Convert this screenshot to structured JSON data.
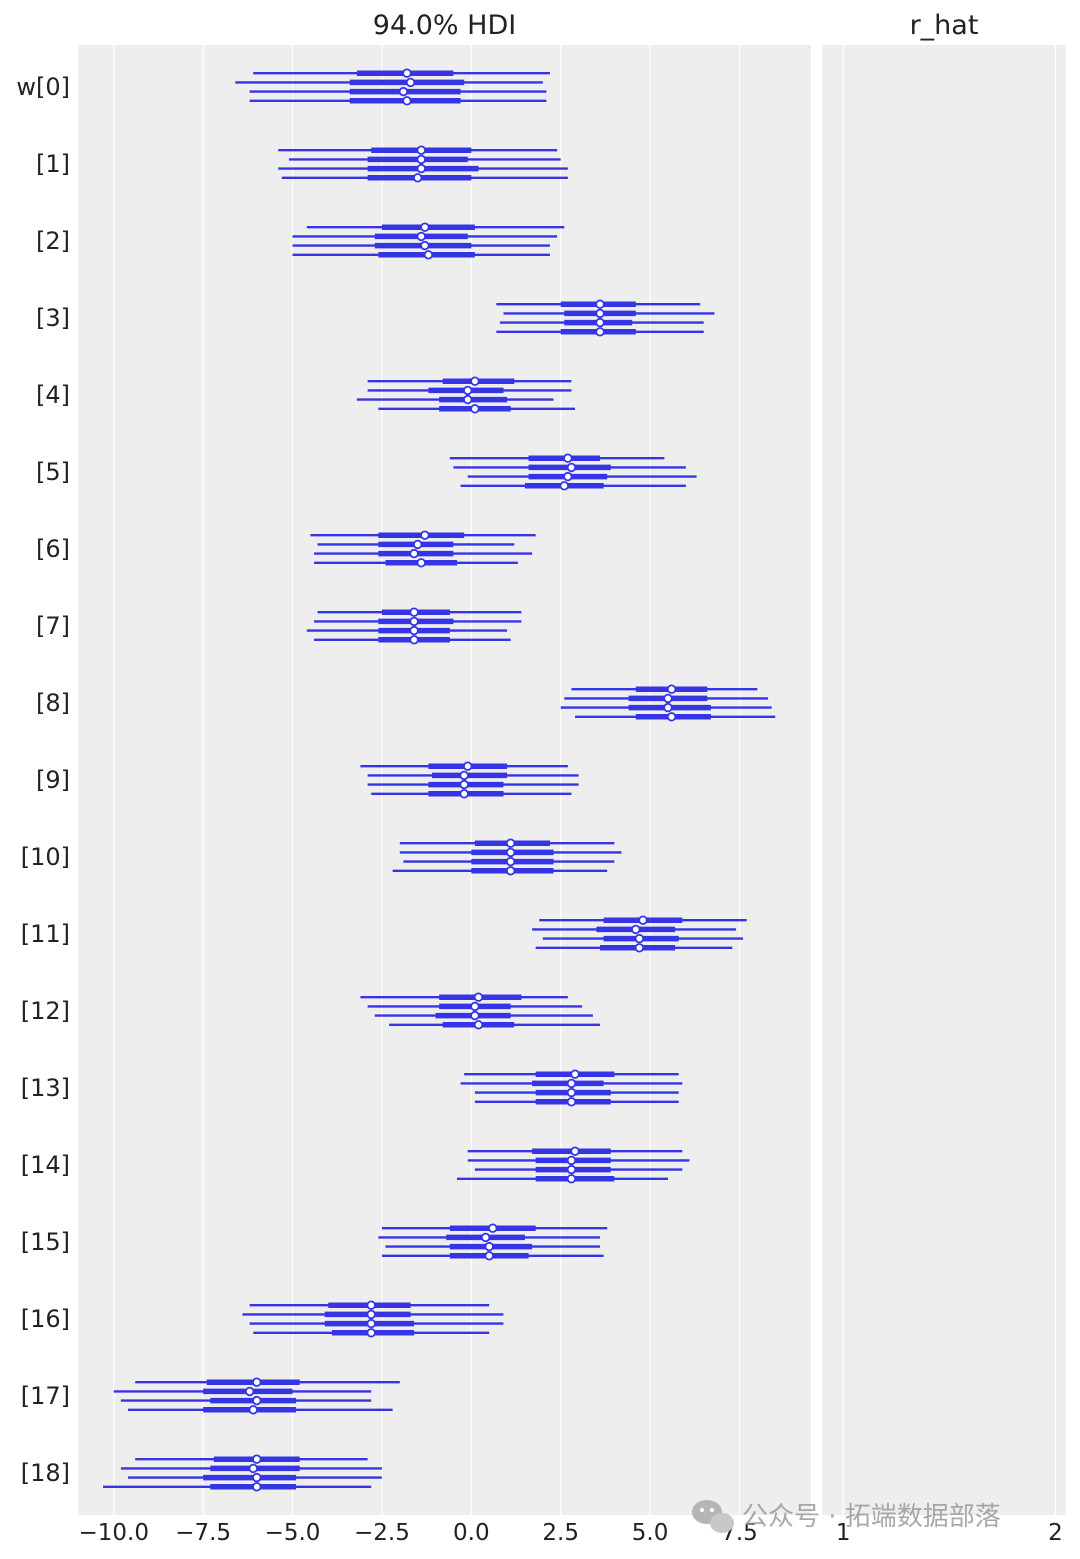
{
  "watermark": "公众号 · 拓端数据部落",
  "chart_data": {
    "type": "forest",
    "panels": [
      {
        "title": "94.0% HDI",
        "xlim": [
          -11.0,
          9.5
        ],
        "xticks": [
          -10.0,
          -7.5,
          -5.0,
          -2.5,
          0.0,
          2.5,
          5.0,
          7.5
        ],
        "xtick_labels": [
          "−10.0",
          "−7.5",
          "−5.0",
          "−2.5",
          "0.0",
          "2.5",
          "5.0",
          "7.5"
        ]
      },
      {
        "title": "r_hat",
        "xlim": [
          0.9,
          2.05
        ],
        "xticks": [
          1,
          2
        ],
        "xtick_labels": [
          "1",
          "2"
        ]
      }
    ],
    "grid": true,
    "chains": 4,
    "row_labels": [
      "w[0]",
      "[1]",
      "[2]",
      "[3]",
      "[4]",
      "[5]",
      "[6]",
      "[7]",
      "[8]",
      "[9]",
      "[10]",
      "[11]",
      "[12]",
      "[13]",
      "[14]",
      "[15]",
      "[16]",
      "[17]",
      "[18]"
    ],
    "rows": [
      {
        "chains": [
          [
            -6.1,
            -3.2,
            -1.8,
            -0.5,
            2.2
          ],
          [
            -6.6,
            -3.4,
            -1.7,
            -0.2,
            2.0
          ],
          [
            -6.2,
            -3.4,
            -1.9,
            -0.3,
            2.1
          ],
          [
            -6.2,
            -3.4,
            -1.8,
            -0.3,
            2.1
          ]
        ]
      },
      {
        "chains": [
          [
            -5.4,
            -2.8,
            -1.4,
            0.0,
            2.4
          ],
          [
            -5.1,
            -2.9,
            -1.4,
            -0.1,
            2.5
          ],
          [
            -5.4,
            -2.9,
            -1.4,
            0.2,
            2.7
          ],
          [
            -5.3,
            -2.9,
            -1.5,
            0.0,
            2.7
          ]
        ]
      },
      {
        "chains": [
          [
            -4.6,
            -2.5,
            -1.3,
            0.1,
            2.6
          ],
          [
            -5.0,
            -2.7,
            -1.4,
            -0.1,
            2.4
          ],
          [
            -5.0,
            -2.7,
            -1.3,
            0.0,
            2.2
          ],
          [
            -5.0,
            -2.6,
            -1.2,
            0.1,
            2.2
          ]
        ]
      },
      {
        "chains": [
          [
            0.7,
            2.5,
            3.6,
            4.6,
            6.4
          ],
          [
            0.9,
            2.6,
            3.6,
            4.6,
            6.8
          ],
          [
            0.8,
            2.6,
            3.6,
            4.5,
            6.5
          ],
          [
            0.7,
            2.5,
            3.6,
            4.6,
            6.5
          ]
        ]
      },
      {
        "chains": [
          [
            -2.9,
            -0.8,
            0.1,
            1.2,
            2.8
          ],
          [
            -2.9,
            -1.2,
            -0.1,
            0.9,
            2.8
          ],
          [
            -3.2,
            -0.9,
            -0.1,
            1.0,
            2.3
          ],
          [
            -2.6,
            -0.9,
            0.1,
            1.1,
            2.9
          ]
        ]
      },
      {
        "chains": [
          [
            -0.6,
            1.6,
            2.7,
            3.6,
            5.4
          ],
          [
            -0.5,
            1.6,
            2.8,
            3.9,
            6.0
          ],
          [
            -0.1,
            1.6,
            2.7,
            3.8,
            6.3
          ],
          [
            -0.3,
            1.5,
            2.6,
            3.7,
            6.0
          ]
        ]
      },
      {
        "chains": [
          [
            -4.5,
            -2.6,
            -1.3,
            -0.2,
            1.8
          ],
          [
            -4.3,
            -2.6,
            -1.5,
            -0.5,
            1.2
          ],
          [
            -4.4,
            -2.6,
            -1.6,
            -0.5,
            1.7
          ],
          [
            -4.4,
            -2.4,
            -1.4,
            -0.4,
            1.3
          ]
        ]
      },
      {
        "chains": [
          [
            -4.3,
            -2.5,
            -1.6,
            -0.6,
            1.4
          ],
          [
            -4.4,
            -2.6,
            -1.6,
            -0.5,
            1.4
          ],
          [
            -4.6,
            -2.6,
            -1.6,
            -0.6,
            1.0
          ],
          [
            -4.4,
            -2.6,
            -1.6,
            -0.6,
            1.1
          ]
        ]
      },
      {
        "chains": [
          [
            2.8,
            4.6,
            5.6,
            6.6,
            8.0
          ],
          [
            2.6,
            4.4,
            5.5,
            6.6,
            8.3
          ],
          [
            2.5,
            4.4,
            5.5,
            6.7,
            8.4
          ],
          [
            2.9,
            4.6,
            5.6,
            6.7,
            8.5
          ]
        ]
      },
      {
        "chains": [
          [
            -3.1,
            -1.2,
            -0.1,
            1.0,
            2.7
          ],
          [
            -2.9,
            -1.1,
            -0.2,
            1.0,
            3.0
          ],
          [
            -2.9,
            -1.2,
            -0.2,
            0.9,
            3.0
          ],
          [
            -2.8,
            -1.2,
            -0.2,
            0.9,
            2.8
          ]
        ]
      },
      {
        "chains": [
          [
            -2.0,
            0.1,
            1.1,
            2.2,
            4.0
          ],
          [
            -2.0,
            0.0,
            1.1,
            2.3,
            4.2
          ],
          [
            -1.9,
            0.0,
            1.1,
            2.3,
            4.0
          ],
          [
            -2.2,
            0.0,
            1.1,
            2.3,
            3.8
          ]
        ]
      },
      {
        "chains": [
          [
            1.9,
            3.7,
            4.8,
            5.9,
            7.7
          ],
          [
            1.7,
            3.5,
            4.6,
            5.7,
            7.4
          ],
          [
            2.0,
            3.7,
            4.7,
            5.8,
            7.6
          ],
          [
            1.8,
            3.6,
            4.7,
            5.7,
            7.3
          ]
        ]
      },
      {
        "chains": [
          [
            -3.1,
            -0.9,
            0.2,
            1.4,
            2.7
          ],
          [
            -2.9,
            -0.9,
            0.1,
            1.1,
            3.1
          ],
          [
            -2.7,
            -1.0,
            0.1,
            1.1,
            3.4
          ],
          [
            -2.3,
            -0.8,
            0.2,
            1.2,
            3.6
          ]
        ]
      },
      {
        "chains": [
          [
            -0.2,
            1.8,
            2.9,
            4.0,
            5.8
          ],
          [
            -0.3,
            1.7,
            2.8,
            3.7,
            5.9
          ],
          [
            0.1,
            1.8,
            2.8,
            3.9,
            5.8
          ],
          [
            0.1,
            1.8,
            2.8,
            3.9,
            5.8
          ]
        ]
      },
      {
        "chains": [
          [
            -0.1,
            1.7,
            2.9,
            3.9,
            5.9
          ],
          [
            -0.1,
            1.8,
            2.8,
            3.9,
            6.1
          ],
          [
            0.1,
            1.8,
            2.8,
            3.9,
            5.9
          ],
          [
            -0.4,
            1.8,
            2.8,
            4.0,
            5.5
          ]
        ]
      },
      {
        "chains": [
          [
            -2.5,
            -0.6,
            0.6,
            1.8,
            3.8
          ],
          [
            -2.6,
            -0.7,
            0.4,
            1.5,
            3.6
          ],
          [
            -2.4,
            -0.6,
            0.5,
            1.7,
            3.6
          ],
          [
            -2.5,
            -0.6,
            0.5,
            1.6,
            3.7
          ]
        ]
      },
      {
        "chains": [
          [
            -6.2,
            -4.0,
            -2.8,
            -1.7,
            0.5
          ],
          [
            -6.4,
            -4.1,
            -2.8,
            -1.7,
            0.9
          ],
          [
            -6.2,
            -4.1,
            -2.8,
            -1.6,
            0.9
          ],
          [
            -6.1,
            -3.9,
            -2.8,
            -1.6,
            0.5
          ]
        ]
      },
      {
        "chains": [
          [
            -9.4,
            -7.4,
            -6.0,
            -4.8,
            -2.0
          ],
          [
            -10.0,
            -7.5,
            -6.2,
            -5.0,
            -2.8
          ],
          [
            -9.8,
            -7.3,
            -6.0,
            -4.9,
            -2.8
          ],
          [
            -9.6,
            -7.5,
            -6.1,
            -4.9,
            -2.2
          ]
        ]
      },
      {
        "chains": [
          [
            -9.4,
            -7.2,
            -6.0,
            -4.8,
            -2.9
          ],
          [
            -9.8,
            -7.3,
            -6.1,
            -4.8,
            -2.5
          ],
          [
            -9.6,
            -7.5,
            -6.0,
            -4.9,
            -2.5
          ],
          [
            -10.3,
            -7.3,
            -6.0,
            -4.9,
            -2.8
          ]
        ]
      }
    ]
  }
}
